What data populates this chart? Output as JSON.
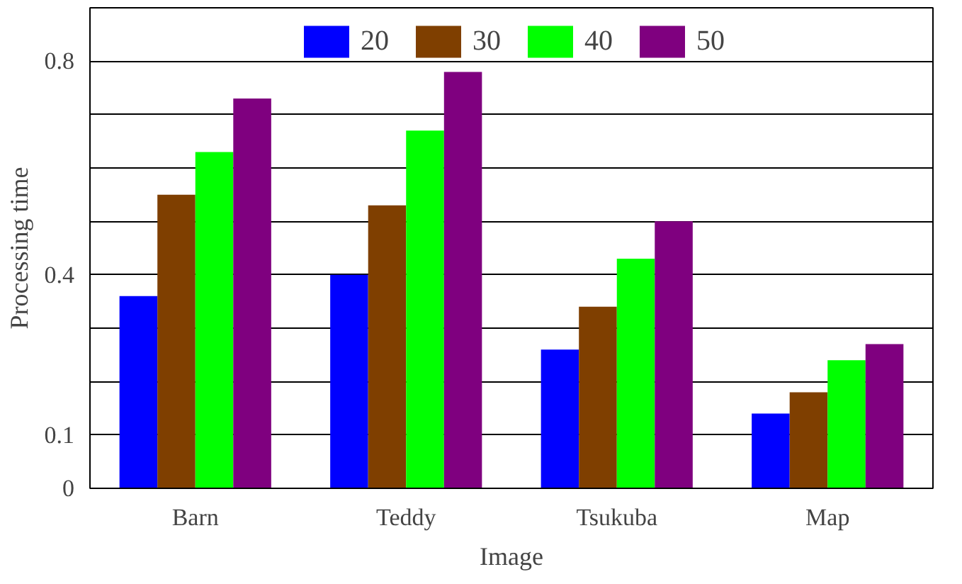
{
  "chart_data": {
    "type": "bar",
    "xlabel": "Image",
    "ylabel": "Processing time",
    "categories": [
      "Barn",
      "Teddy",
      "Tsukuba",
      "Map"
    ],
    "series": [
      {
        "name": "20",
        "color": "#0000ff",
        "values": [
          0.36,
          0.4,
          0.26,
          0.14
        ]
      },
      {
        "name": "30",
        "color": "#7f3f00",
        "values": [
          0.55,
          0.53,
          0.34,
          0.18
        ]
      },
      {
        "name": "40",
        "color": "#00ff00",
        "values": [
          0.63,
          0.67,
          0.43,
          0.24
        ]
      },
      {
        "name": "50",
        "color": "#7f007f",
        "values": [
          0.73,
          0.78,
          0.5,
          0.27
        ]
      }
    ],
    "ylim": [
      0,
      0.9
    ],
    "yticks": [
      0,
      0.1,
      {
        "value": 0.2,
        "label": null
      },
      {
        "value": 0.3,
        "label": null
      },
      0.4,
      {
        "value": 0.5,
        "label": null
      },
      {
        "value": 0.6,
        "label": null
      },
      {
        "value": 0.7,
        "label": null
      },
      0.8
    ],
    "grid": "y",
    "legend": "top"
  }
}
